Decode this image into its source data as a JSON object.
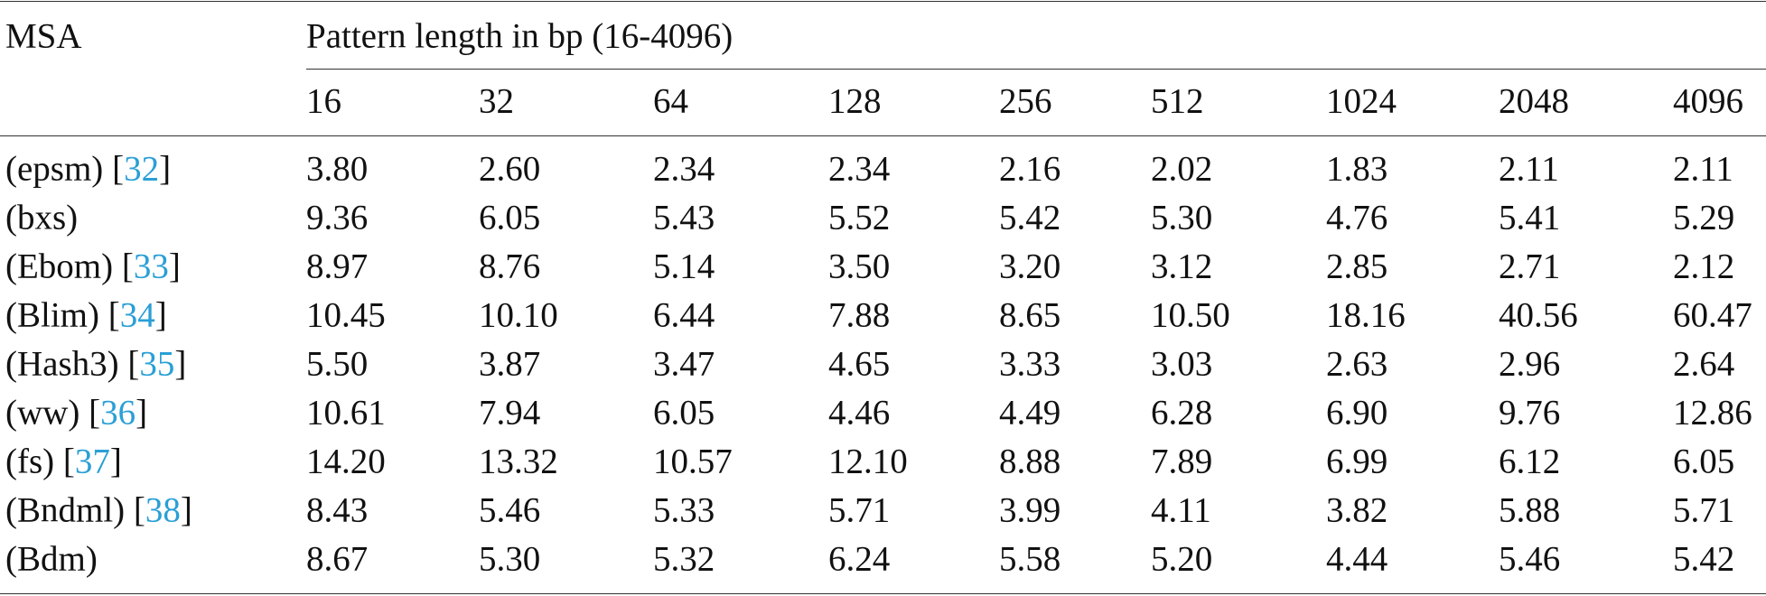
{
  "table": {
    "corner_header": "MSA",
    "group_header": "Pattern length in bp (16-4096)",
    "columns": [
      "16",
      "32",
      "64",
      "128",
      "256",
      "512",
      "1024",
      "2048",
      "4096"
    ],
    "citation_brackets": [
      "[",
      "]"
    ],
    "rows": [
      {
        "name": "(epsm)",
        "ref": "32",
        "values": [
          "3.80",
          "2.60",
          "2.34",
          "2.34",
          "2.16",
          "2.02",
          "1.83",
          "2.11",
          "2.11"
        ]
      },
      {
        "name": "(bxs)",
        "ref": null,
        "values": [
          "9.36",
          "6.05",
          "5.43",
          "5.52",
          "5.42",
          "5.30",
          "4.76",
          "5.41",
          "5.29"
        ]
      },
      {
        "name": "(Ebom)",
        "ref": "33",
        "values": [
          "8.97",
          "8.76",
          "5.14",
          "3.50",
          "3.20",
          "3.12",
          "2.85",
          "2.71",
          "2.12"
        ]
      },
      {
        "name": "(Blim)",
        "ref": "34",
        "values": [
          "10.45",
          "10.10",
          "6.44",
          "7.88",
          "8.65",
          "10.50",
          "18.16",
          "40.56",
          "60.47"
        ]
      },
      {
        "name": "(Hash3)",
        "ref": "35",
        "values": [
          "5.50",
          "3.87",
          "3.47",
          "4.65",
          "3.33",
          "3.03",
          "2.63",
          "2.96",
          "2.64"
        ]
      },
      {
        "name": "(ww)",
        "ref": "36",
        "values": [
          "10.61",
          "7.94",
          "6.05",
          "4.46",
          "4.49",
          "6.28",
          "6.90",
          "9.76",
          "12.86"
        ]
      },
      {
        "name": "(fs)",
        "ref": "37",
        "values": [
          "14.20",
          "13.32",
          "10.57",
          "12.10",
          "8.88",
          "7.89",
          "6.99",
          "6.12",
          "6.05"
        ]
      },
      {
        "name": "(Bndml)",
        "ref": "38",
        "values": [
          "8.43",
          "5.46",
          "5.33",
          "5.71",
          "3.99",
          "4.11",
          "3.82",
          "5.88",
          "5.71"
        ]
      },
      {
        "name": "(Bdm)",
        "ref": null,
        "values": [
          "8.67",
          "5.30",
          "5.32",
          "6.24",
          "5.58",
          "5.20",
          "4.44",
          "5.46",
          "5.42"
        ]
      }
    ]
  }
}
